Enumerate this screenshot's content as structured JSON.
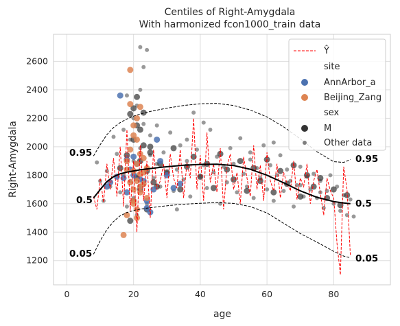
{
  "chart_data": {
    "type": "scatter",
    "title": "Centiles of Right-Amygdala",
    "subtitle": "With harmonized fcon1000_train data",
    "xlabel": "age",
    "ylabel": "Right-Amygdala",
    "xlim": [
      -4,
      97
    ],
    "ylim": [
      1030,
      2790
    ],
    "xticks": [
      0,
      20,
      40,
      60,
      80
    ],
    "yticks": [
      1200,
      1400,
      1600,
      1800,
      2000,
      2200,
      2400,
      2600
    ],
    "grid": true,
    "legend": {
      "placement": "top-right",
      "yhat_label": "Ŷ",
      "site_title": "site",
      "sites": [
        {
          "label": "AnnArbor_a",
          "color": "#4c72b0"
        },
        {
          "label": "Beijing_Zang",
          "color": "#dd8452"
        }
      ],
      "sex_title": "sex",
      "sex_entries": [
        {
          "label": "M"
        }
      ],
      "other_label": "Other data"
    },
    "centiles": [
      {
        "label": "0.95",
        "x": [
          8,
          10,
          12,
          14,
          16,
          18,
          20,
          22,
          25,
          28,
          31,
          35,
          40,
          45,
          50,
          55,
          60,
          65,
          70,
          75,
          80,
          83,
          85
        ],
        "y": [
          1935,
          2015,
          2085,
          2135,
          2170,
          2195,
          2215,
          2230,
          2248,
          2262,
          2275,
          2290,
          2302,
          2305,
          2290,
          2258,
          2210,
          2140,
          2055,
          1965,
          1895,
          1890,
          1910
        ]
      },
      {
        "label": "0.5",
        "x": [
          8,
          10,
          12,
          14,
          16,
          18,
          20,
          22,
          25,
          28,
          31,
          35,
          40,
          45,
          50,
          55,
          60,
          65,
          70,
          75,
          80,
          83,
          85
        ],
        "y": [
          1640,
          1700,
          1755,
          1790,
          1810,
          1822,
          1830,
          1838,
          1847,
          1855,
          1862,
          1870,
          1876,
          1877,
          1868,
          1842,
          1800,
          1747,
          1690,
          1645,
          1615,
          1605,
          1600
        ]
      },
      {
        "label": "0.05",
        "x": [
          8,
          10,
          12,
          14,
          16,
          18,
          20,
          22,
          25,
          28,
          31,
          35,
          40,
          45,
          50,
          55,
          60,
          65,
          70,
          75,
          80,
          83,
          85
        ],
        "y": [
          1245,
          1340,
          1418,
          1475,
          1515,
          1538,
          1552,
          1562,
          1572,
          1580,
          1588,
          1596,
          1603,
          1608,
          1602,
          1580,
          1535,
          1462,
          1390,
          1330,
          1265,
          1232,
          1220
        ]
      }
    ],
    "centile_text": {
      "c95": "0.95",
      "c50": "0.5",
      "c05": "0.05"
    },
    "other_data_sample": {
      "x": [
        9,
        10,
        11,
        12,
        13,
        14,
        15,
        16,
        17,
        18,
        18,
        19,
        19,
        20,
        20,
        20,
        21,
        21,
        21,
        22,
        22,
        22,
        23,
        23,
        24,
        24,
        25,
        25,
        26,
        27,
        28,
        29,
        30,
        31,
        32,
        33,
        34,
        35,
        36,
        37,
        38,
        39,
        40,
        41,
        42,
        43,
        44,
        45,
        46,
        47,
        48,
        49,
        50,
        51,
        52,
        53,
        54,
        55,
        56,
        57,
        58,
        59,
        60,
        61,
        62,
        63,
        64,
        65,
        66,
        67,
        68,
        69,
        70,
        71,
        72,
        73,
        74,
        75,
        76,
        77,
        78,
        79,
        80,
        81,
        82,
        83,
        84,
        85,
        86,
        24,
        23,
        36,
        41,
        55,
        62,
        70,
        76,
        17,
        27,
        33
      ],
      "y": [
        1890,
        1760,
        1620,
        1830,
        1720,
        2070,
        1950,
        1680,
        2120,
        1580,
        2360,
        1760,
        2050,
        1900,
        2200,
        1640,
        2290,
        1800,
        1520,
        1990,
        2400,
        2700,
        1730,
        2160,
        1850,
        1600,
        1940,
        2080,
        1780,
        1880,
        1720,
        1960,
        1820,
        2100,
        1690,
        1840,
        2010,
        1770,
        1900,
        1650,
        2240,
        1980,
        1790,
        1870,
        1710,
        2120,
        1820,
        1930,
        1600,
        1860,
        1750,
        1990,
        1880,
        1680,
        2060,
        1810,
        1720,
        1910,
        1640,
        1850,
        1780,
        2010,
        1700,
        1870,
        1620,
        1800,
        1940,
        1690,
        1840,
        1760,
        1580,
        1730,
        1860,
        1650,
        1790,
        1700,
        1810,
        1640,
        1760,
        1570,
        1690,
        1800,
        1600,
        1720,
        1550,
        1660,
        1520,
        1630,
        1510,
        2680,
        2560,
        2050,
        2170,
        1960,
        2030,
        1730,
        1680,
        1800,
        2150,
        1560
      ]
    },
    "male_data_sample": {
      "x": [
        16,
        18,
        19,
        20,
        20,
        21,
        21,
        22,
        22,
        23,
        24,
        25,
        26,
        28,
        30,
        32,
        34,
        36,
        38,
        40,
        42,
        44,
        46,
        48,
        50,
        52,
        54,
        56,
        58,
        60,
        62,
        64,
        66,
        68,
        70,
        72,
        74,
        76,
        78,
        80,
        82,
        84,
        20,
        22,
        24,
        19,
        21,
        23,
        25,
        27
      ],
      "y": [
        1850,
        1940,
        2230,
        1620,
        2050,
        1780,
        2150,
        1900,
        1700,
        2010,
        1830,
        1960,
        1750,
        1880,
        1820,
        1990,
        1700,
        1860,
        1930,
        1790,
        1880,
        1710,
        1950,
        1840,
        1770,
        1900,
        1690,
        1850,
        1760,
        1910,
        1680,
        1830,
        1740,
        1870,
        1650,
        1800,
        1720,
        1780,
        1640,
        1700,
        1590,
        1660,
        2270,
        2120,
        1560,
        1480,
        2350,
        2240,
        2000,
        1720
      ]
    },
    "annarbor_points": {
      "x": [
        12,
        13,
        15,
        16,
        17,
        18,
        19,
        20,
        21,
        22,
        23,
        24,
        25,
        26,
        27,
        28,
        30,
        32,
        34,
        18,
        20,
        22,
        24
      ],
      "y": [
        1720,
        1750,
        1790,
        2360,
        1780,
        1910,
        1840,
        1800,
        1880,
        1720,
        1760,
        1620,
        1540,
        1700,
        2050,
        1900,
        1800,
        1710,
        1740,
        1680,
        1930,
        1770,
        1570
      ]
    },
    "beijing_points": {
      "x": [
        17,
        18,
        18,
        19,
        19,
        19,
        20,
        20,
        20,
        20,
        21,
        21,
        21,
        21,
        22,
        22,
        22,
        22,
        23,
        23,
        24,
        24,
        19,
        20,
        21,
        22,
        18,
        20,
        21,
        23
      ],
      "y": [
        1380,
        1520,
        1900,
        2540,
        1980,
        1750,
        2150,
        1830,
        1700,
        1600,
        2050,
        1880,
        1760,
        1560,
        2280,
        1950,
        1810,
        1680,
        1920,
        1740,
        1850,
        1640,
        2300,
        2080,
        1500,
        1720,
        1840,
        1620,
        2200,
        1820
      ]
    },
    "yhat": {
      "x": [
        8,
        9,
        10,
        11,
        12,
        13,
        14,
        15,
        16,
        17,
        18,
        19,
        20,
        21,
        22,
        23,
        24,
        25,
        26,
        27,
        28,
        29,
        30,
        31,
        32,
        33,
        34,
        35,
        36,
        37,
        38,
        39,
        40,
        41,
        42,
        43,
        44,
        45,
        46,
        47,
        48,
        49,
        50,
        51,
        52,
        53,
        54,
        55,
        56,
        57,
        58,
        59,
        60,
        61,
        62,
        63,
        64,
        65,
        66,
        67,
        68,
        69,
        70,
        71,
        72,
        73,
        74,
        75,
        76,
        77,
        78,
        79,
        80,
        81,
        82,
        83,
        84,
        85
      ],
      "y": [
        1650,
        1560,
        1780,
        1610,
        1880,
        1700,
        1920,
        1650,
        2000,
        1580,
        2120,
        1550,
        1900,
        1400,
        2010,
        1620,
        1900,
        1500,
        1980,
        1700,
        1760,
        1880,
        1640,
        1950,
        1780,
        1710,
        1980,
        1640,
        1890,
        1780,
        2200,
        1700,
        1940,
        1620,
        2100,
        1750,
        1880,
        1680,
        1990,
        1560,
        1860,
        1950,
        1700,
        1820,
        1600,
        1930,
        1780,
        1650,
        2010,
        1700,
        1870,
        1620,
        1960,
        1760,
        1690,
        1880,
        1640,
        1820,
        1740,
        1690,
        1900,
        1630,
        1780,
        1720,
        1880,
        1600,
        1760,
        1840,
        1670,
        1520,
        1780,
        1690,
        1640,
        1320,
        1100,
        1860,
        1700,
        1230
      ]
    }
  }
}
